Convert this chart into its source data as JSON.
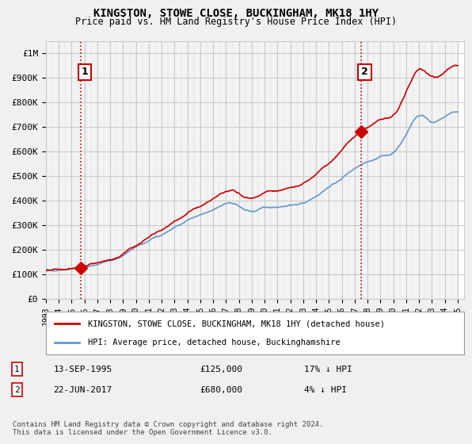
{
  "title": "KINGSTON, STOWE CLOSE, BUCKINGHAM, MK18 1HY",
  "subtitle": "Price paid vs. HM Land Registry's House Price Index (HPI)",
  "ylabel_ticks": [
    "£0",
    "£100K",
    "£200K",
    "£300K",
    "£400K",
    "£500K",
    "£600K",
    "£700K",
    "£800K",
    "£900K",
    "£1M"
  ],
  "ytick_values": [
    0,
    100000,
    200000,
    300000,
    400000,
    500000,
    600000,
    700000,
    800000,
    900000,
    1000000
  ],
  "ylim": [
    0,
    1050000
  ],
  "xlim_start": 1993.0,
  "xlim_end": 2025.5,
  "xtick_years": [
    1993,
    1994,
    1995,
    1996,
    1997,
    1998,
    1999,
    2000,
    2001,
    2002,
    2003,
    2004,
    2005,
    2006,
    2007,
    2008,
    2009,
    2010,
    2011,
    2012,
    2013,
    2014,
    2015,
    2016,
    2017,
    2018,
    2019,
    2020,
    2021,
    2022,
    2023,
    2024,
    2025
  ],
  "transaction1_x": 1995.71,
  "transaction1_y": 125000,
  "transaction1_label": "1",
  "transaction2_x": 2017.47,
  "transaction2_y": 680000,
  "transaction2_label": "2",
  "transaction_color": "#cc0000",
  "transaction_marker": "D",
  "transaction_marker_size": 8,
  "vline1_x": 1995.71,
  "vline2_x": 2017.47,
  "vline_color": "#cc0000",
  "vline_style": ":",
  "legend_line1_label": "KINGSTON, STOWE CLOSE, BUCKINGHAM, MK18 1HY (detached house)",
  "legend_line2_label": "HPI: Average price, detached house, Buckinghamshire",
  "legend_line1_color": "#cc0000",
  "legend_line2_color": "#6699cc",
  "table_row1": [
    "1",
    "13-SEP-1995",
    "£125,000",
    "17% ↓ HPI"
  ],
  "table_row2": [
    "2",
    "22-JUN-2017",
    "£680,000",
    "4% ↓ HPI"
  ],
  "footer": "Contains HM Land Registry data © Crown copyright and database right 2024.\nThis data is licensed under the Open Government Licence v3.0.",
  "bg_color": "#f0f0f0",
  "plot_bg_color": "#ffffff",
  "grid_color": "#cccccc",
  "hatch_color": "#dddddd"
}
